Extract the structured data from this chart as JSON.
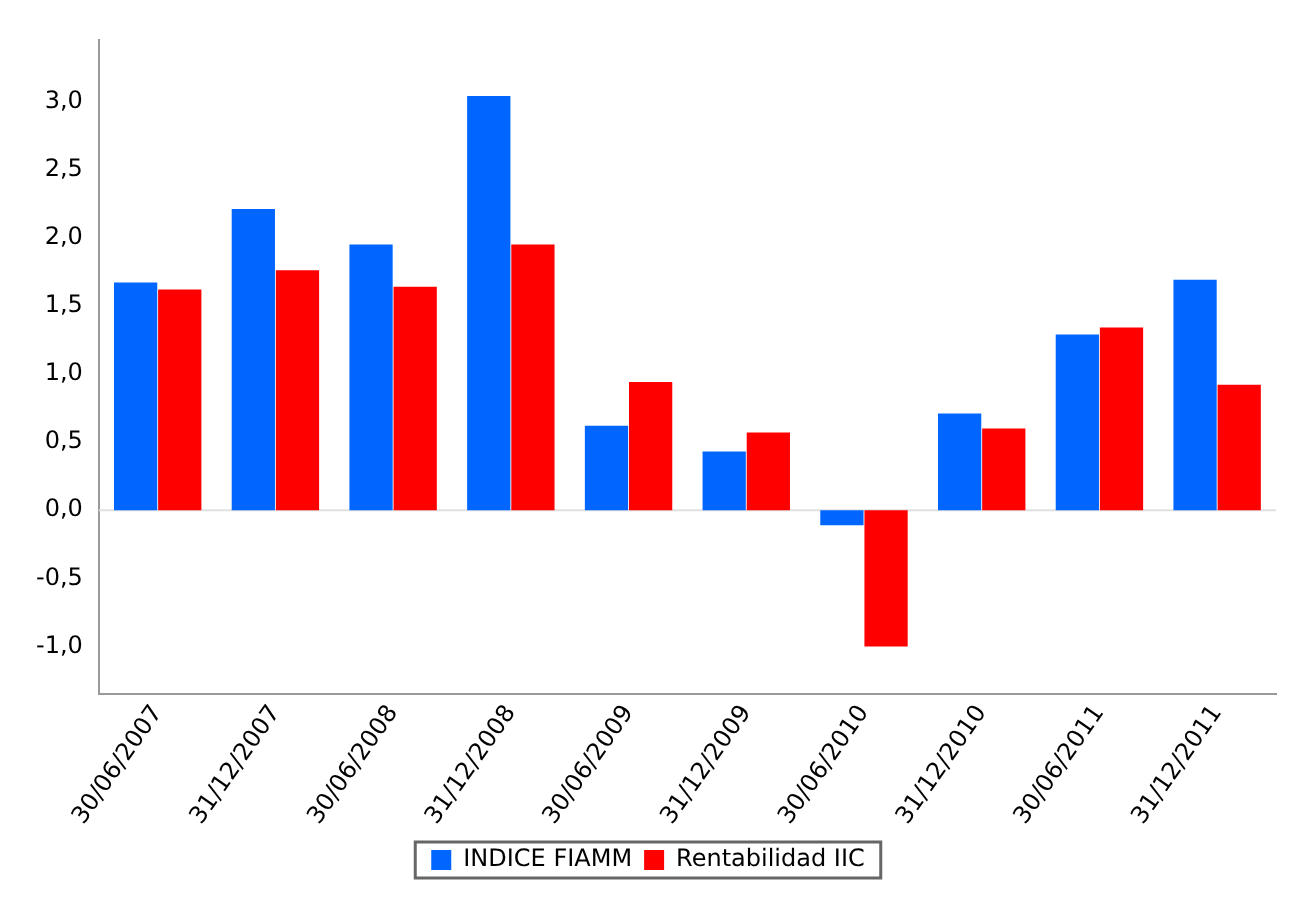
{
  "chart_data": {
    "type": "bar",
    "categories": [
      "30/06/2007",
      "31/12/2007",
      "30/06/2008",
      "31/12/2008",
      "30/06/2009",
      "31/12/2009",
      "30/06/2010",
      "31/12/2010",
      "30/06/2011",
      "31/12/2011"
    ],
    "series": [
      {
        "name": "INDICE FIAMM",
        "color": "#0066ff",
        "values": [
          1.67,
          2.21,
          1.95,
          3.04,
          0.62,
          0.43,
          -0.11,
          0.71,
          1.29,
          1.69
        ]
      },
      {
        "name": "Rentabilidad IIC",
        "color": "#ff0000",
        "values": [
          1.62,
          1.76,
          1.64,
          1.95,
          0.94,
          0.57,
          -1.0,
          0.6,
          1.34,
          0.92
        ]
      }
    ],
    "ylim": [
      -1.35,
      3.45
    ],
    "yticks": [
      {
        "value": -1,
        "label": "-1,0"
      },
      {
        "value": -0.5,
        "label": "-0,5"
      },
      {
        "value": 0,
        "label": "0,0"
      },
      {
        "value": 0.5,
        "label": "0,5"
      },
      {
        "value": 1,
        "label": "1,0"
      },
      {
        "value": 1.5,
        "label": "1,5"
      },
      {
        "value": 2,
        "label": "2,0"
      },
      {
        "value": 2.5,
        "label": "2,5"
      },
      {
        "value": 3,
        "label": "3,0"
      }
    ],
    "ref_lines": [
      {
        "axis": "y",
        "value": 0,
        "color": "#e0e0e0"
      }
    ],
    "grid": false,
    "legend": "bottom"
  }
}
